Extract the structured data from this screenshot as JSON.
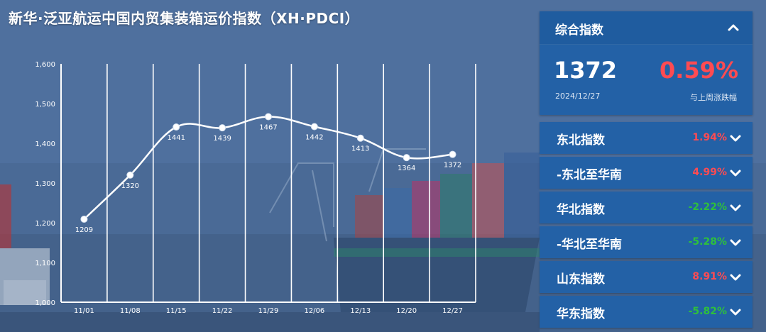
{
  "title": "新华·泛亚航运中国内贸集装箱运价指数（XH·PDCI）",
  "colors": {
    "up": "#ff4b52",
    "down": "#2ec03c",
    "panel": "#2361a6",
    "line": "#ffffff"
  },
  "composite": {
    "label": "综合指数",
    "value": "1372",
    "date": "2024/12/27",
    "change": "0.59%",
    "change_caption": "与上周涨跌幅",
    "collapse_icon": "chevron-up-icon"
  },
  "indices": [
    {
      "label": "东北指数",
      "change": "1.94%",
      "direction": "up"
    },
    {
      "label": "-东北至华南",
      "change": "4.99%",
      "direction": "up"
    },
    {
      "label": "华北指数",
      "change": "-2.22%",
      "direction": "down"
    },
    {
      "label": "-华北至华南",
      "change": "-5.28%",
      "direction": "down"
    },
    {
      "label": "山东指数",
      "change": "8.91%",
      "direction": "up"
    },
    {
      "label": "华东指数",
      "change": "-5.82%",
      "direction": "down"
    }
  ],
  "chart_data": {
    "type": "line",
    "categories": [
      "11/01",
      "11/08",
      "11/15",
      "11/22",
      "11/29",
      "12/06",
      "12/13",
      "12/20",
      "12/27"
    ],
    "values": [
      1209,
      1320,
      1441,
      1439,
      1467,
      1442,
      1413,
      1364,
      1372
    ],
    "y_ticks": [
      "1,000",
      "1,100",
      "1,200",
      "1,300",
      "1,400",
      "1,500",
      "1,600"
    ],
    "ylim": [
      1000,
      1600
    ],
    "grid": "vertical",
    "smooth": true
  }
}
